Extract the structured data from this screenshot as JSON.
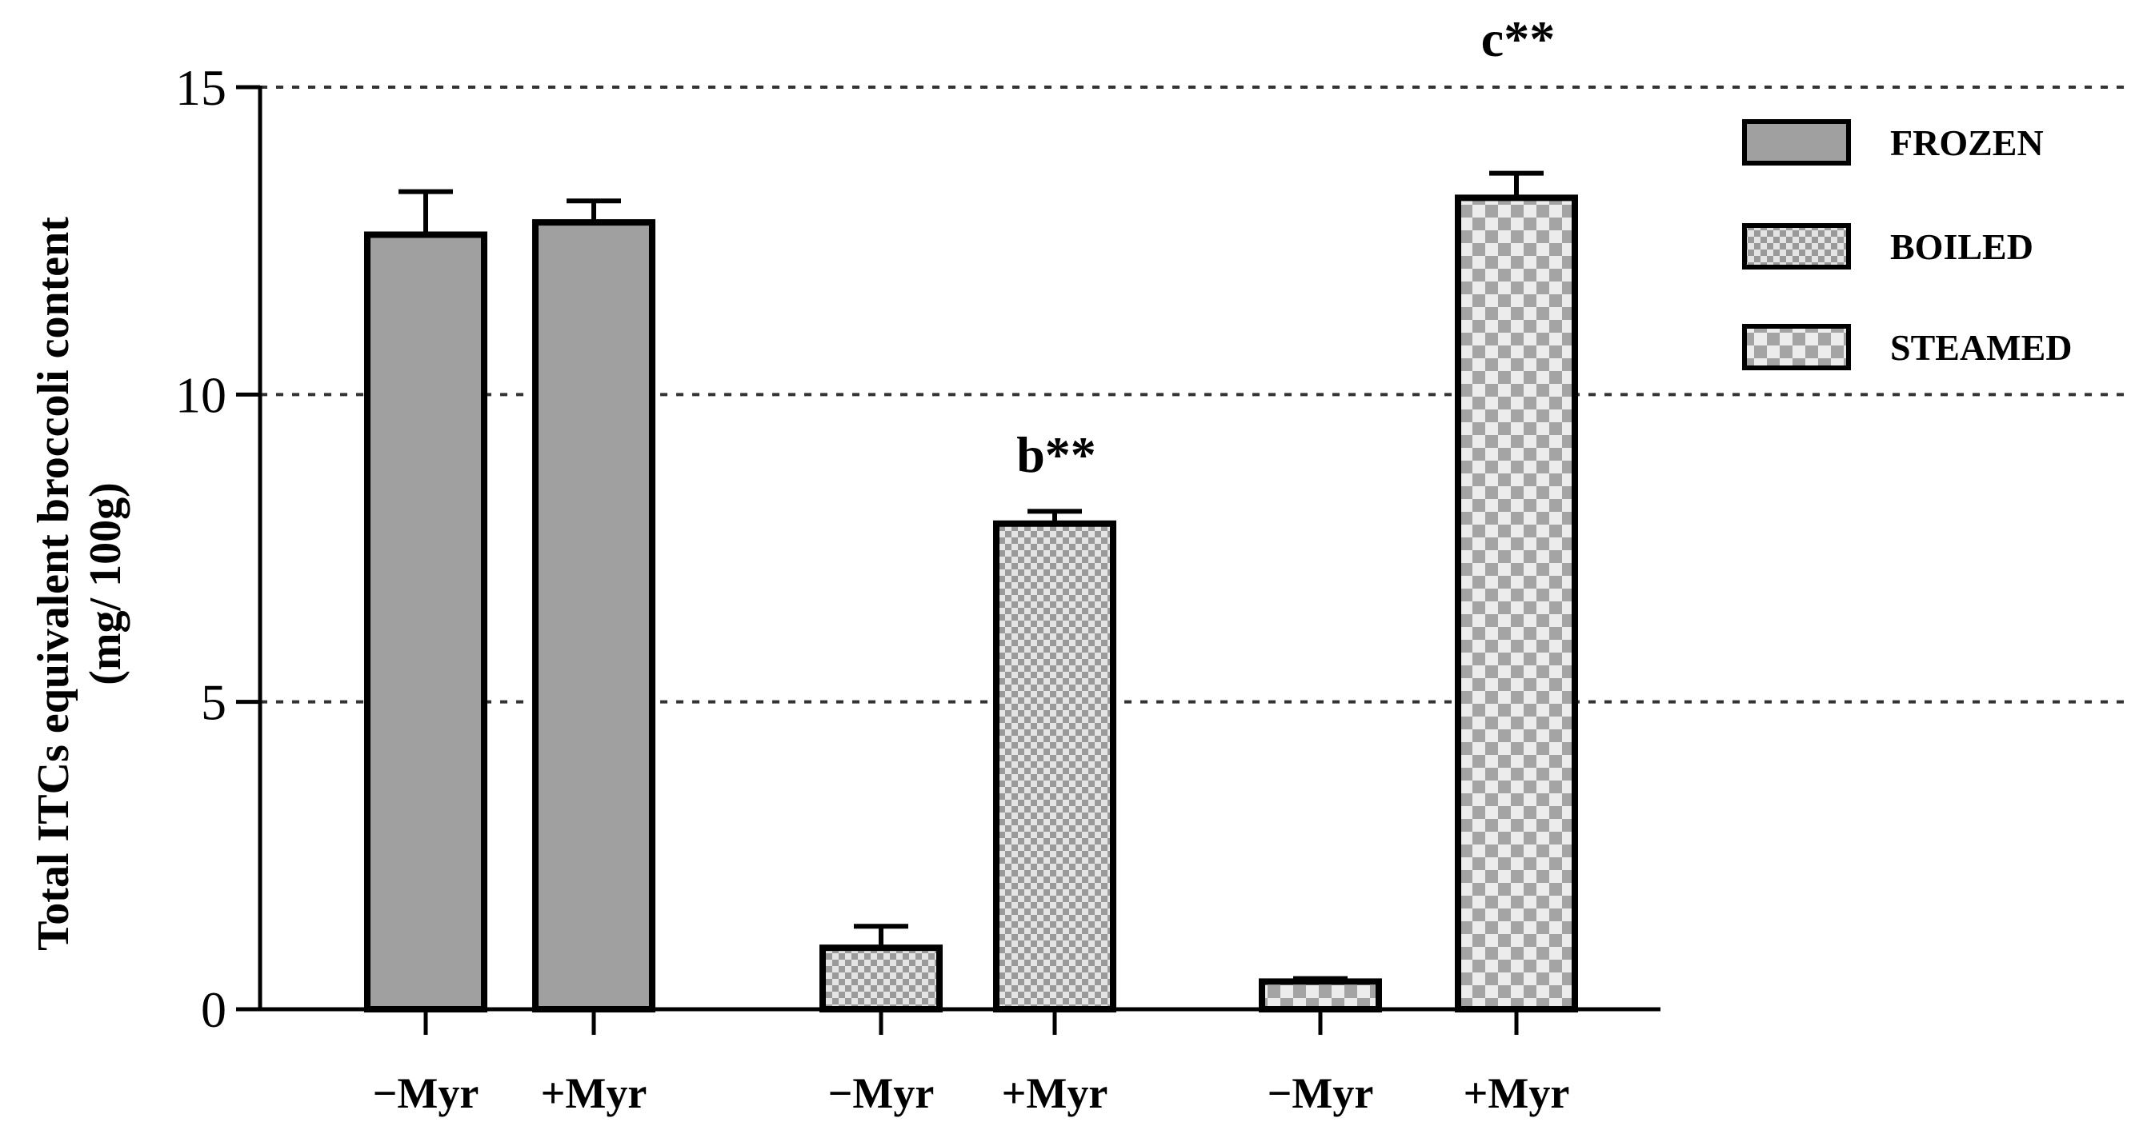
{
  "chart_data": {
    "type": "bar",
    "title": "",
    "xlabel": "",
    "ylabel": "Total ITCs equivalent broccoli content",
    "ylabel_unit": "(mg/ 100g)",
    "ylim": [
      0,
      15
    ],
    "yticks": [
      "0",
      "5",
      "10",
      "15"
    ],
    "ytick_values": [
      0,
      5,
      10,
      15
    ],
    "grid": "dashed horizontal at 5, 10, 15",
    "legend_position": "top-right",
    "categories": [
      "−Myr",
      "+Myr",
      "−Myr",
      "+Myr",
      "−Myr",
      "+Myr"
    ],
    "series": [
      {
        "name": "FROZEN",
        "pattern": "solid",
        "color": "#a0a0a0"
      },
      {
        "name": "BOILED",
        "pattern": "fine-check",
        "color": "#bdbdbd"
      },
      {
        "name": "STEAMED",
        "pattern": "coarse-check",
        "color": "#c8c8c8"
      }
    ],
    "bars": [
      {
        "label": "−Myr",
        "series": "FROZEN",
        "value": 12.6,
        "error": 0.7,
        "annotation": ""
      },
      {
        "label": "+Myr",
        "series": "FROZEN",
        "value": 12.8,
        "error": 0.35,
        "annotation": ""
      },
      {
        "label": "−Myr",
        "series": "BOILED",
        "value": 1.0,
        "error": 0.35,
        "annotation": ""
      },
      {
        "label": "+Myr",
        "series": "BOILED",
        "value": 7.9,
        "error": 0.2,
        "annotation": "b**"
      },
      {
        "label": "−Myr",
        "series": "STEAMED",
        "value": 0.45,
        "error": 0.05,
        "annotation": ""
      },
      {
        "label": "+Myr",
        "series": "STEAMED",
        "value": 13.2,
        "error": 0.4,
        "annotation": "c**"
      }
    ]
  }
}
